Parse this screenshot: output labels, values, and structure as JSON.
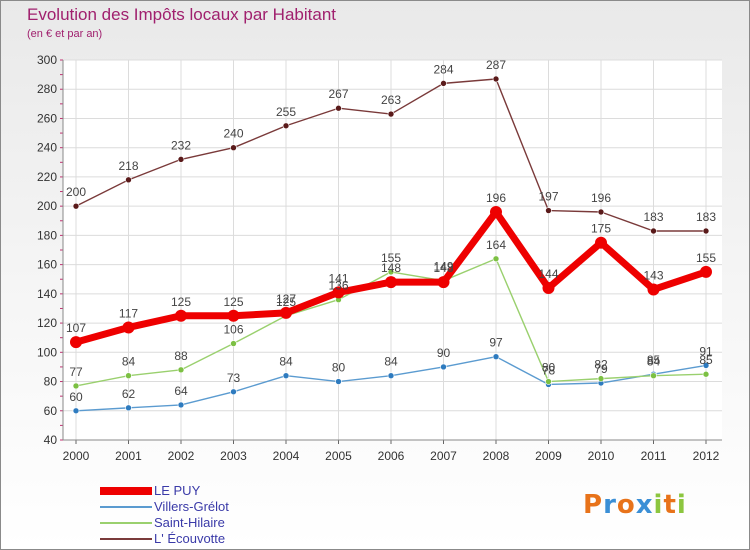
{
  "title": "Evolution des Impôts locaux par Habitant",
  "subtitle": "(en € et par an)",
  "logo": {
    "text": "Proxiti",
    "letters": [
      {
        "ch": "P",
        "color": "#e8731a"
      },
      {
        "ch": "r",
        "color": "#3b8fd6"
      },
      {
        "ch": "o",
        "color": "#e8731a"
      },
      {
        "ch": "x",
        "color": "#3b8fd6"
      },
      {
        "ch": "i",
        "color": "#8cc63f"
      },
      {
        "ch": "t",
        "color": "#e8731a"
      },
      {
        "ch": "i",
        "color": "#8cc63f"
      }
    ]
  },
  "legend": {
    "items": [
      {
        "label": "LE PUY",
        "color": "#ee0000"
      },
      {
        "label": "Villers-Grélot",
        "color": "#5b9bd0"
      },
      {
        "label": "Saint-Hilaire",
        "color": "#9ad06e"
      },
      {
        "label": "L' Écouvotte",
        "color": "#7a3a3a"
      }
    ]
  },
  "chart_data": {
    "type": "line",
    "title": "Evolution des Impôts locaux par Habitant",
    "subtitle": "(en € et par an)",
    "xlabel": "",
    "ylabel": "",
    "x": [
      "2000",
      "2001",
      "2002",
      "2003",
      "2004",
      "2005",
      "2006",
      "2007",
      "2008",
      "2009",
      "2010",
      "2011",
      "2012"
    ],
    "ylim": [
      40,
      300
    ],
    "yticks": [
      40,
      60,
      80,
      100,
      120,
      140,
      160,
      180,
      200,
      220,
      240,
      260,
      280,
      300
    ],
    "grid": true,
    "legend_position": "bottom-left",
    "series": [
      {
        "name": "L' Écouvotte",
        "color": "#7a3a3a",
        "dot": "#5a1a1a",
        "values": [
          200,
          218,
          232,
          240,
          255,
          267,
          263,
          284,
          287,
          197,
          196,
          183,
          183
        ]
      },
      {
        "name": "Villers-Grélot",
        "color": "#5b9bd0",
        "dot": "#2e7bbf",
        "values": [
          60,
          62,
          64,
          73,
          84,
          80,
          84,
          90,
          97,
          78,
          79,
          85,
          91
        ]
      },
      {
        "name": "Saint-Hilaire",
        "color": "#9ad06e",
        "dot": "#7cc043",
        "values": [
          77,
          84,
          88,
          106,
          125,
          136,
          155,
          149,
          164,
          80,
          82,
          84,
          85
        ]
      },
      {
        "name": "LE PUY",
        "color": "#ee0000",
        "dot": "#ee0000",
        "values": [
          107,
          117,
          125,
          125,
          127,
          141,
          148,
          148,
          196,
          144,
          175,
          143,
          155
        ]
      }
    ]
  }
}
